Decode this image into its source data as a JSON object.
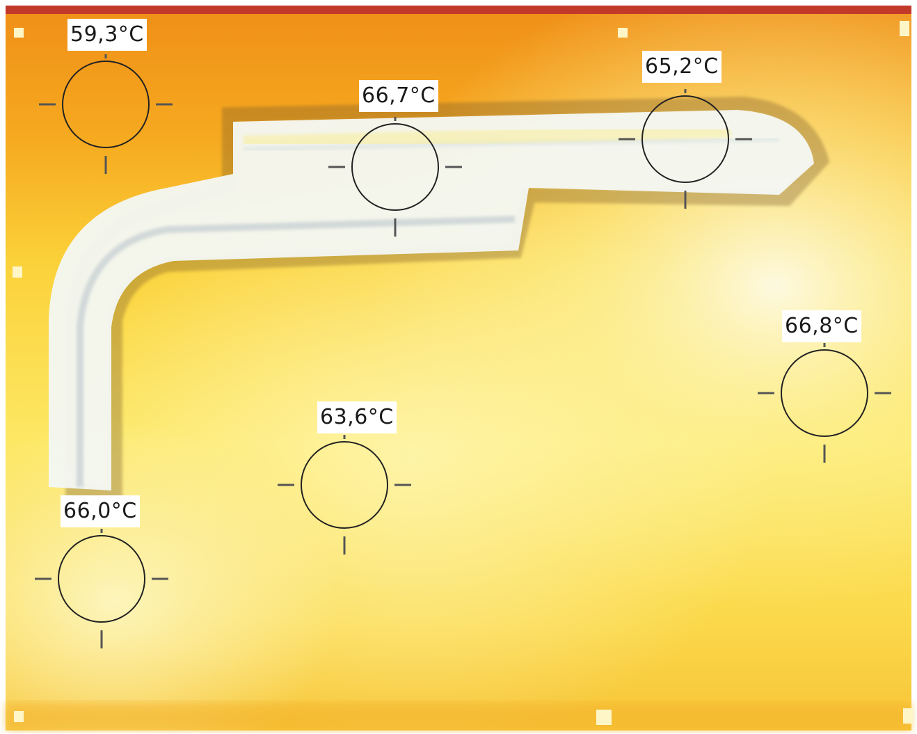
{
  "image": {
    "description": "thermal camera image with temperature measurement spots",
    "colors": {
      "hot_white": "#f7f9f2",
      "warm_yellow": "#fdf06a",
      "orange": "#f6a623",
      "deep_orange": "#ec8a14",
      "crosshair": "#222222"
    }
  },
  "measurements": [
    {
      "label": "59,3°C"
    },
    {
      "label": "66,7°C"
    },
    {
      "label": "65,2°C"
    },
    {
      "label": "66,8°C"
    },
    {
      "label": "63,6°C"
    },
    {
      "label": "66,0°C"
    }
  ]
}
